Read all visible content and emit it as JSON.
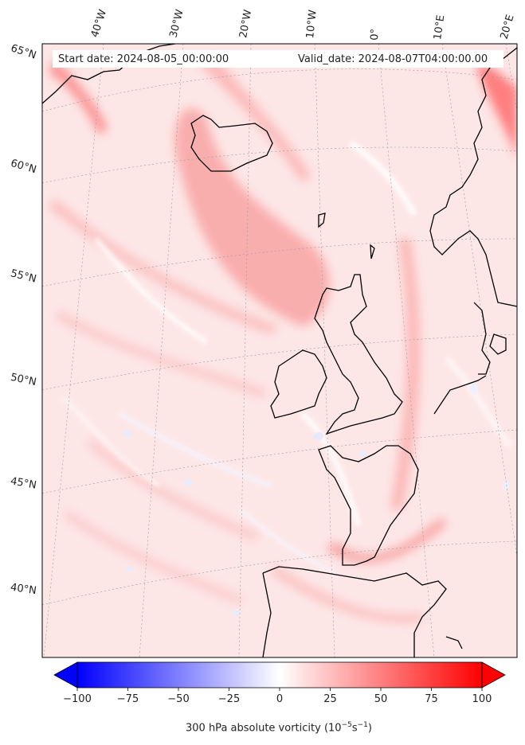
{
  "header": {
    "start_label": "Start date: 2024-08-05_00:00:00",
    "valid_label": "Valid_date: 2024-08-07T04:00:00.00"
  },
  "map": {
    "projection": "lambert-conformal",
    "lon_labels": [
      "40°W",
      "30°W",
      "20°W",
      "10°W",
      "0°",
      "10°E",
      "20°E"
    ],
    "lat_labels": [
      "65°N",
      "60°N",
      "55°N",
      "50°N",
      "45°N",
      "40°N"
    ],
    "gridlines": true,
    "coastline_color": "#000000"
  },
  "colorbar": {
    "ticks": [
      "−100",
      "−75",
      "−50",
      "−25",
      "0",
      "25",
      "50",
      "75",
      "100"
    ],
    "min": -100,
    "max": 100,
    "extend": "both",
    "colormap": "bwr",
    "label_text": "300 hPa absolute vorticity (10",
    "label_exp1": "−5",
    "label_mid": "s",
    "label_exp2": "−1",
    "label_close": ")"
  },
  "colors": {
    "min_color": "#0000ff",
    "mid_color": "#ffffff",
    "max_color": "#ff0000"
  }
}
